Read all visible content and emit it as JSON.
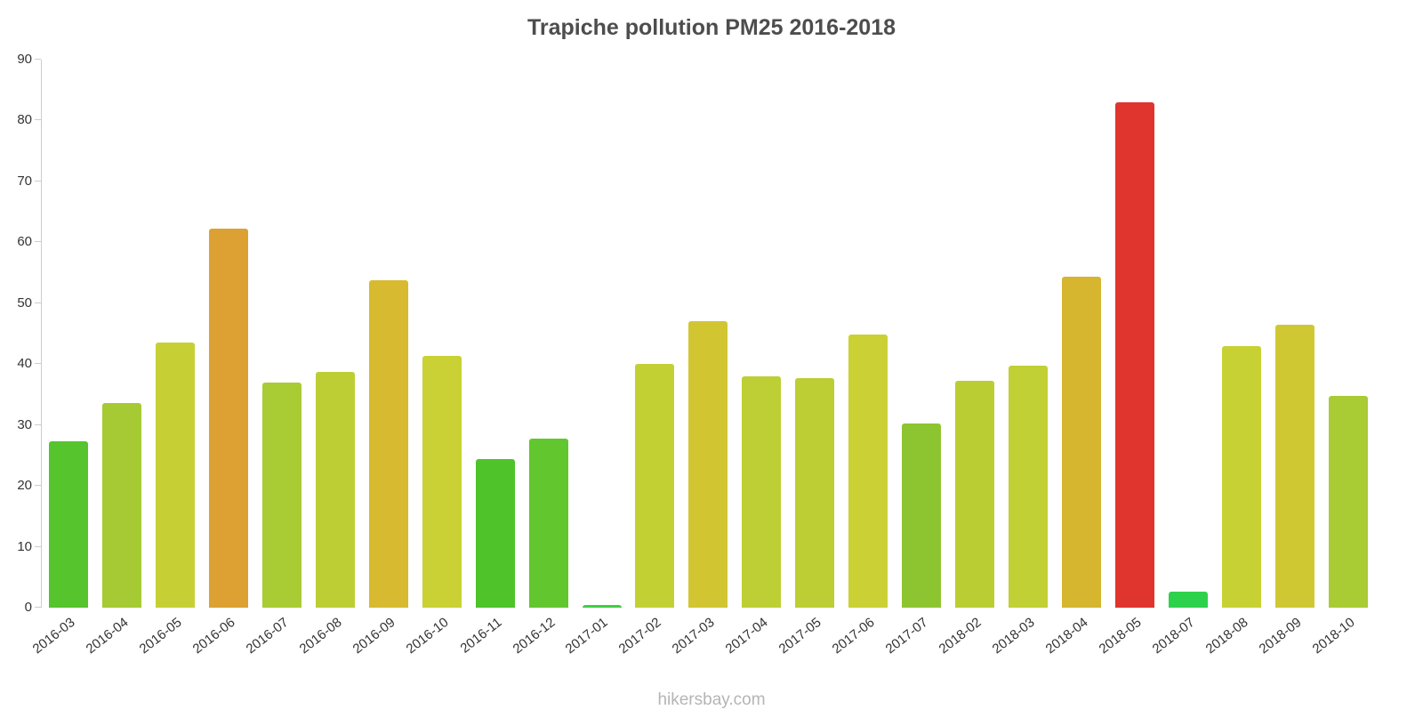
{
  "page": {
    "footer": "hikersbay.com"
  },
  "chart_data": {
    "type": "bar",
    "title": "Trapiche pollution PM25 2016-2018",
    "categories": [
      "2016-03",
      "2016-04",
      "2016-05",
      "2016-06",
      "2016-07",
      "2016-08",
      "2016-09",
      "2016-10",
      "2016-11",
      "2016-12",
      "2017-01",
      "2017-02",
      "2017-03",
      "2017-04",
      "2017-05",
      "2017-06",
      "2017-07",
      "2018-02",
      "2018-03",
      "2018-04",
      "2018-05",
      "2018-07",
      "2018-08",
      "2018-09",
      "2018-10"
    ],
    "values": [
      27.3,
      33.6,
      43.5,
      62.2,
      36.9,
      38.7,
      53.7,
      41.3,
      24.4,
      27.8,
      0.5,
      40.0,
      47.0,
      38.0,
      37.7,
      44.9,
      30.3,
      37.3,
      39.7,
      54.3,
      83.0,
      2.6,
      42.9,
      46.5,
      34.8
    ],
    "colors": [
      "#56c42c",
      "#a5ca33",
      "#c6d034",
      "#dda032",
      "#a9cb33",
      "#bdce35",
      "#d7ba30",
      "#c9d134",
      "#4ec32a",
      "#62c62e",
      "#3ecf40",
      "#c3d034",
      "#d2c532",
      "#bdcf34",
      "#bcce34",
      "#cbd134",
      "#8dc531",
      "#bace34",
      "#c1d034",
      "#d6b52f",
      "#e0342f",
      "#2ed14c",
      "#c8d134",
      "#d0c832",
      "#a9cb33"
    ],
    "ylim": [
      0,
      90
    ],
    "yticks": [
      0,
      10,
      20,
      30,
      40,
      50,
      60,
      70,
      80,
      90
    ],
    "grid": false,
    "legend": "none",
    "source": "hikersbay.com"
  }
}
